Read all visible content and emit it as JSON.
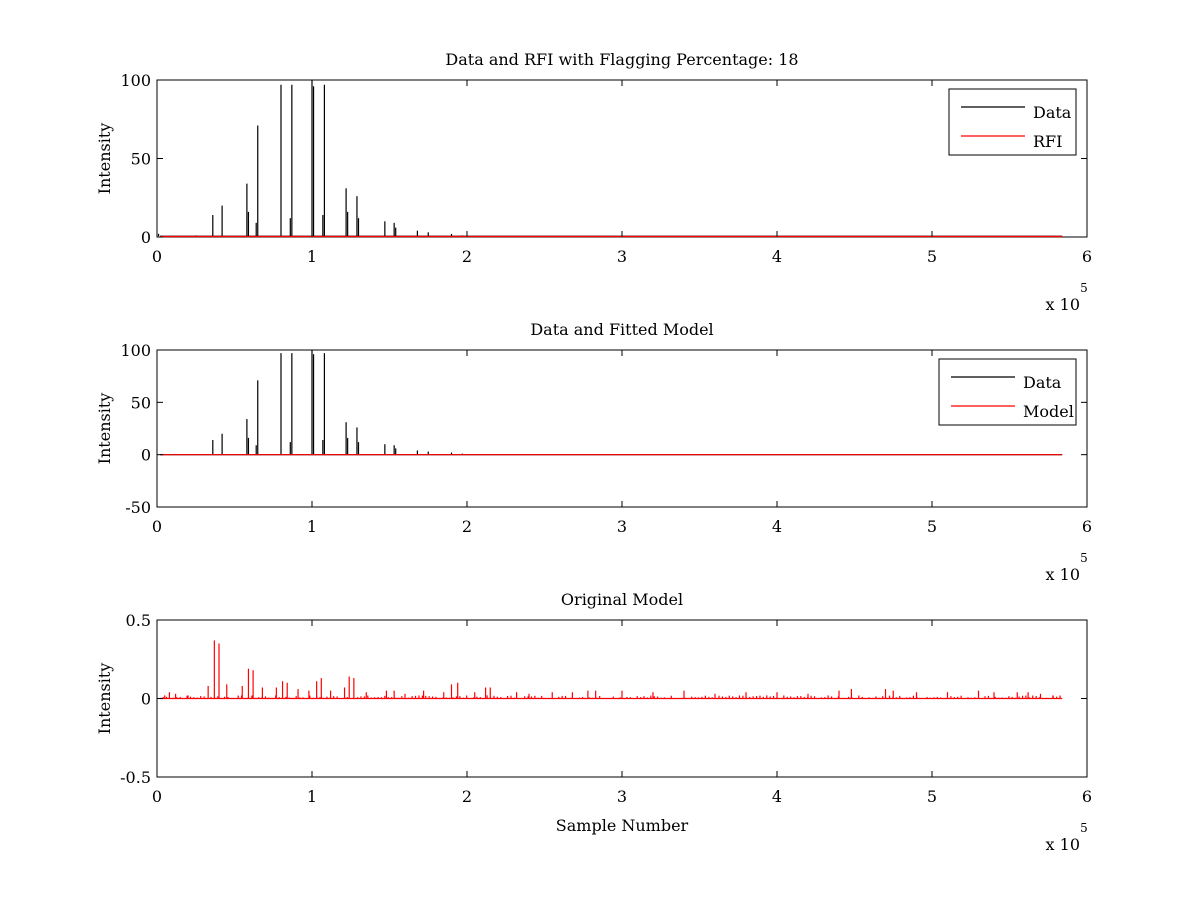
{
  "chart_data": [
    {
      "type": "line",
      "title": "Data and RFI with Flagging Percentage: 18",
      "xlabel": "",
      "ylabel": "Intensity",
      "xlim": [
        0,
        600000
      ],
      "ylim": [
        0,
        100
      ],
      "x_ticks": [
        0,
        1,
        2,
        3,
        4,
        5,
        6
      ],
      "x_tick_labels": [
        "0",
        "1",
        "2",
        "3",
        "4",
        "5",
        "6"
      ],
      "x_exponent_label": "x 10",
      "x_exponent": "5",
      "y_ticks": [
        0,
        50,
        100
      ],
      "y_tick_labels": [
        "0",
        "50",
        "100"
      ],
      "legend_position": "top-right",
      "series": [
        {
          "name": "Data",
          "color": "#000000",
          "spikes": [
            [
              1000,
              2
            ],
            [
              25000,
              1
            ],
            [
              36000,
              14
            ],
            [
              42000,
              20
            ],
            [
              58000,
              34
            ],
            [
              59000,
              16
            ],
            [
              64000,
              9
            ],
            [
              65000,
              71
            ],
            [
              80000,
              97
            ],
            [
              86000,
              12
            ],
            [
              87000,
              97
            ],
            [
              100000,
              100
            ],
            [
              101000,
              96
            ],
            [
              107000,
              14
            ],
            [
              108000,
              97
            ],
            [
              122000,
              31
            ],
            [
              123000,
              16
            ],
            [
              129000,
              26
            ],
            [
              130000,
              12
            ],
            [
              147000,
              10
            ],
            [
              153000,
              9
            ],
            [
              154000,
              6
            ],
            [
              168000,
              4
            ],
            [
              175000,
              3
            ],
            [
              190000,
              2
            ],
            [
              197000,
              1
            ]
          ],
          "baseline": 0.5
        },
        {
          "name": "RFI",
          "color": "#ff0000",
          "spikes": [
            [
              230000,
              0.5
            ],
            [
              290000,
              0.6
            ],
            [
              310000,
              0.6
            ],
            [
              330000,
              0.5
            ],
            [
              380000,
              0.4
            ],
            [
              450000,
              0.4
            ],
            [
              500000,
              0.4
            ]
          ],
          "baseline": 0.3
        }
      ]
    },
    {
      "type": "line",
      "title": "Data and Fitted Model",
      "xlabel": "",
      "ylabel": "Intensity",
      "xlim": [
        0,
        600000
      ],
      "ylim": [
        -50,
        100
      ],
      "x_ticks": [
        0,
        1,
        2,
        3,
        4,
        5,
        6
      ],
      "x_tick_labels": [
        "0",
        "1",
        "2",
        "3",
        "4",
        "5",
        "6"
      ],
      "x_exponent_label": "x 10",
      "x_exponent": "5",
      "y_ticks": [
        -50,
        0,
        50,
        100
      ],
      "y_tick_labels": [
        "-50",
        "0",
        "50",
        "100"
      ],
      "legend_position": "top-right",
      "series": [
        {
          "name": "Data",
          "color": "#000000",
          "spikes": [
            [
              36000,
              14
            ],
            [
              42000,
              20
            ],
            [
              58000,
              34
            ],
            [
              59000,
              16
            ],
            [
              64000,
              9
            ],
            [
              65000,
              71
            ],
            [
              80000,
              97
            ],
            [
              86000,
              12
            ],
            [
              87000,
              97
            ],
            [
              100000,
              100
            ],
            [
              101000,
              96
            ],
            [
              107000,
              14
            ],
            [
              108000,
              97
            ],
            [
              122000,
              31
            ],
            [
              123000,
              16
            ],
            [
              129000,
              26
            ],
            [
              130000,
              12
            ],
            [
              147000,
              10
            ],
            [
              153000,
              9
            ],
            [
              154000,
              6
            ],
            [
              168000,
              4
            ],
            [
              175000,
              3
            ],
            [
              190000,
              2
            ],
            [
              197000,
              1
            ]
          ],
          "baseline": 0
        },
        {
          "name": "Model",
          "color": "#ff0000",
          "spikes": [],
          "baseline": 0
        }
      ]
    },
    {
      "type": "line",
      "title": "Original Model",
      "xlabel": "Sample Number",
      "ylabel": "Intensity",
      "xlim": [
        0,
        600000
      ],
      "ylim": [
        -0.5,
        0.5
      ],
      "x_ticks": [
        0,
        1,
        2,
        3,
        4,
        5,
        6
      ],
      "x_tick_labels": [
        "0",
        "1",
        "2",
        "3",
        "4",
        "5",
        "6"
      ],
      "x_exponent_label": "x 10",
      "x_exponent": "5",
      "y_ticks": [
        -0.5,
        0,
        0.5
      ],
      "y_tick_labels": [
        "-0.5",
        "0",
        "0.5"
      ],
      "series": [
        {
          "color": "#ff0000",
          "spikes": [
            [
              5000,
              0.02
            ],
            [
              8000,
              0.04
            ],
            [
              12000,
              0.03
            ],
            [
              20000,
              0.02
            ],
            [
              33000,
              0.08
            ],
            [
              37000,
              0.37
            ],
            [
              40000,
              0.35
            ],
            [
              45000,
              0.09
            ],
            [
              55000,
              0.08
            ],
            [
              59000,
              0.19
            ],
            [
              62000,
              0.18
            ],
            [
              68000,
              0.07
            ],
            [
              77000,
              0.07
            ],
            [
              81000,
              0.11
            ],
            [
              84000,
              0.1
            ],
            [
              91000,
              0.06
            ],
            [
              98000,
              0.05
            ],
            [
              103000,
              0.11
            ],
            [
              106000,
              0.13
            ],
            [
              112000,
              0.05
            ],
            [
              121000,
              0.07
            ],
            [
              124000,
              0.14
            ],
            [
              127000,
              0.13
            ],
            [
              135000,
              0.04
            ],
            [
              148000,
              0.05
            ],
            [
              153000,
              0.05
            ],
            [
              160000,
              0.03
            ],
            [
              172000,
              0.05
            ],
            [
              185000,
              0.04
            ],
            [
              190000,
              0.09
            ],
            [
              194000,
              0.1
            ],
            [
              205000,
              0.04
            ],
            [
              212000,
              0.07
            ],
            [
              215000,
              0.07
            ],
            [
              232000,
              0.04
            ],
            [
              240000,
              0.03
            ],
            [
              255000,
              0.04
            ],
            [
              268000,
              0.04
            ],
            [
              278000,
              0.05
            ],
            [
              283000,
              0.05
            ],
            [
              300000,
              0.05
            ],
            [
              320000,
              0.04
            ],
            [
              340000,
              0.05
            ],
            [
              360000,
              0.03
            ],
            [
              380000,
              0.04
            ],
            [
              400000,
              0.04
            ],
            [
              420000,
              0.03
            ],
            [
              440000,
              0.05
            ],
            [
              448000,
              0.06
            ],
            [
              470000,
              0.06
            ],
            [
              475000,
              0.05
            ],
            [
              490000,
              0.04
            ],
            [
              510000,
              0.04
            ],
            [
              530000,
              0.05
            ],
            [
              540000,
              0.04
            ],
            [
              555000,
              0.04
            ],
            [
              562000,
              0.04
            ],
            [
              570000,
              0.03
            ],
            [
              578000,
              0.02
            ]
          ],
          "baseline": 0,
          "noise": 0.02
        }
      ]
    }
  ]
}
